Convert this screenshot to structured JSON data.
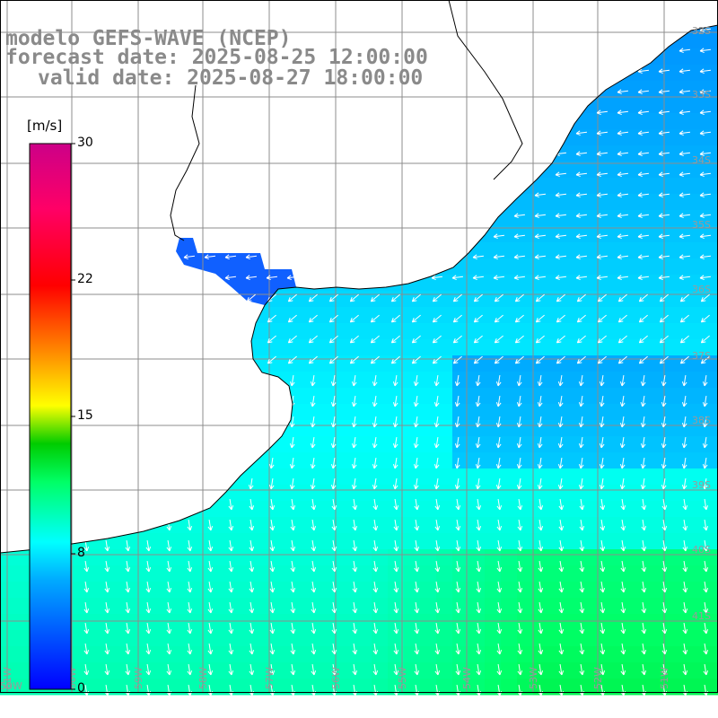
{
  "title": {
    "line1": "modelo GEFS-WAVE (NCEP)",
    "line2": "forecast date: 2025-08-25 12:00:00",
    "line3": "valid date: 2025-08-27 18:00:00"
  },
  "colorbar": {
    "unit": "[m/s]",
    "ticks": [
      "30",
      "22",
      "15",
      "8",
      "0"
    ],
    "values": [
      30,
      22,
      15,
      8,
      0
    ],
    "range": [
      0,
      30
    ],
    "colors": [
      "#0000ff",
      "#00aaff",
      "#00ffff",
      "#00ff66",
      "#00cc00",
      "#ffff00",
      "#ff8800",
      "#ff0000",
      "#ff0066",
      "#cc0088"
    ]
  },
  "map": {
    "lon_labels": [
      "61W",
      "60W",
      "59W",
      "58W",
      "57W",
      "56W",
      "55W",
      "54W",
      "53W",
      "52W",
      "51W",
      "50W"
    ],
    "lat_labels": [
      "32S",
      "33S",
      "34S",
      "35S",
      "36S",
      "37S",
      "38S",
      "39S",
      "40S",
      "41S"
    ],
    "lon_range": [
      -61,
      -50
    ],
    "lat_range": [
      -41.5,
      -31
    ],
    "land_color": "#ffffff",
    "grid_color": "#888888",
    "arrow_color": "#ffffff"
  }
}
